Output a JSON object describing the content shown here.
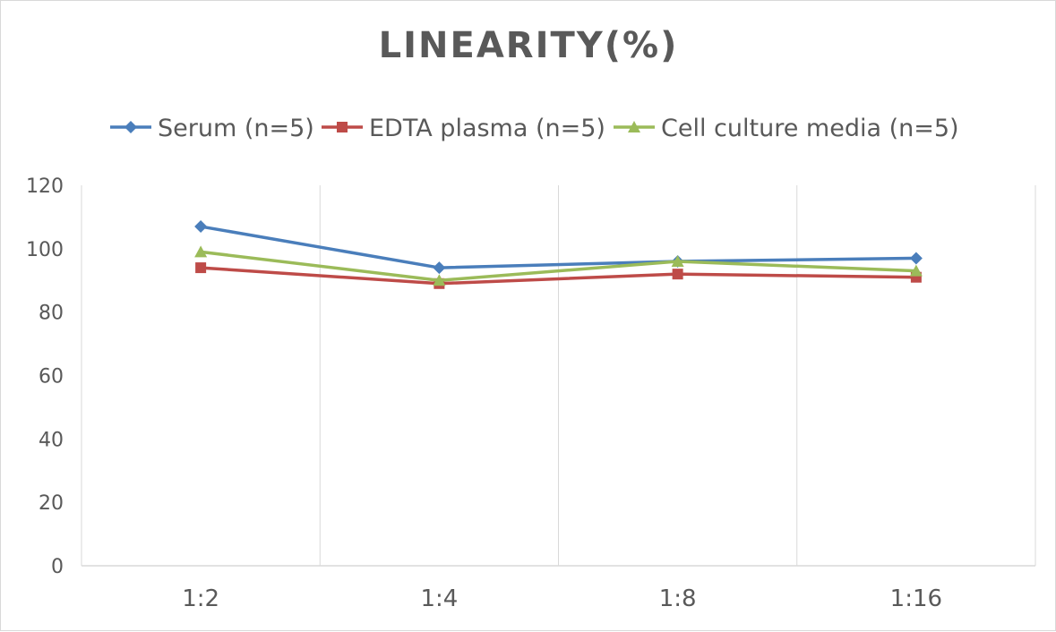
{
  "chart_data": {
    "type": "line",
    "title": "LINEARITY(%)",
    "categories": [
      "1:2",
      "1:4",
      "1:8",
      "1:16"
    ],
    "series": [
      {
        "name": "Serum (n=5)",
        "values": [
          107,
          94,
          96,
          97
        ],
        "color": "#4a7ebb",
        "marker": "diamond"
      },
      {
        "name": "EDTA plasma (n=5)",
        "values": [
          94,
          89,
          92,
          91
        ],
        "color": "#be4b48",
        "marker": "square"
      },
      {
        "name": "Cell culture media (n=5)",
        "values": [
          99,
          90,
          96,
          93
        ],
        "color": "#9bbb59",
        "marker": "triangle"
      }
    ],
    "ylim": [
      0,
      120
    ],
    "yticks": [
      "0",
      "20",
      "40",
      "60",
      "80",
      "100",
      "120"
    ],
    "xlabel": "",
    "ylabel": "",
    "grid": "vertical",
    "legend": "top"
  }
}
